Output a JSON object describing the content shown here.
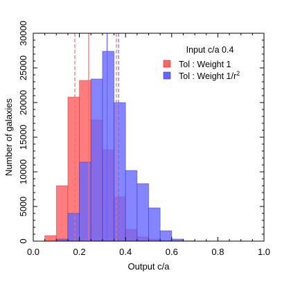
{
  "chart_data": {
    "type": "bar",
    "subtype": "overlapping-histogram",
    "xlabel": "Output c/a",
    "ylabel": "Number of galaxies",
    "xlim": [
      0.0,
      1.0
    ],
    "ylim": [
      0,
      30000
    ],
    "xticks": [
      "0.0",
      "0.2",
      "0.4",
      "0.6",
      "0.8",
      "1.0"
    ],
    "yticks": [
      "0",
      "5000",
      "10000",
      "15000",
      "20000",
      "25000",
      "30000"
    ],
    "grid": false,
    "legend": {
      "title": "Input c/a 0.4",
      "placement": "top-right"
    },
    "bin_edges": [
      0.05,
      0.1,
      0.15,
      0.2,
      0.25,
      0.3,
      0.35,
      0.4,
      0.45,
      0.5,
      0.55,
      0.6,
      0.65,
      0.7
    ],
    "series": [
      {
        "name": "Tol : Weight 1",
        "color": "#ff6666",
        "values": [
          800,
          8000,
          20800,
          23200,
          17500,
          13200,
          6400,
          1700,
          600,
          300,
          100,
          50,
          20
        ],
        "median_line": 0.24,
        "percentile_lines": [
          0.18,
          0.36
        ]
      },
      {
        "name": "Tol : Weight 1/r",
        "name_superscript": "2",
        "color": "#6666ff",
        "values": [
          0,
          300,
          4000,
          11400,
          23400,
          27400,
          20000,
          10200,
          8300,
          4800,
          1500,
          300,
          30
        ],
        "median_line": 0.32,
        "percentile_lines": [
          0.37
        ]
      }
    ]
  }
}
